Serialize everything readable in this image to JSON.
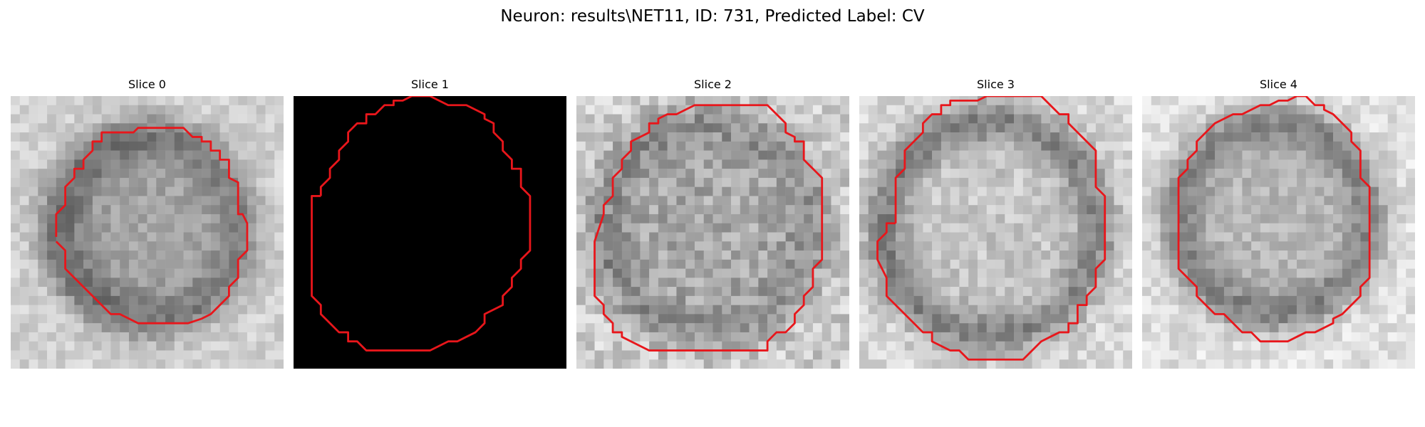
{
  "figure": {
    "title": "Neuron: results\\NET11, ID: 731, Predicted Label: CV",
    "contour_color": "#e8161b"
  },
  "panels": [
    {
      "title": "Slice 0"
    },
    {
      "title": "Slice 1"
    },
    {
      "title": "Slice 2"
    },
    {
      "title": "Slice 3"
    },
    {
      "title": "Slice 4"
    }
  ]
}
